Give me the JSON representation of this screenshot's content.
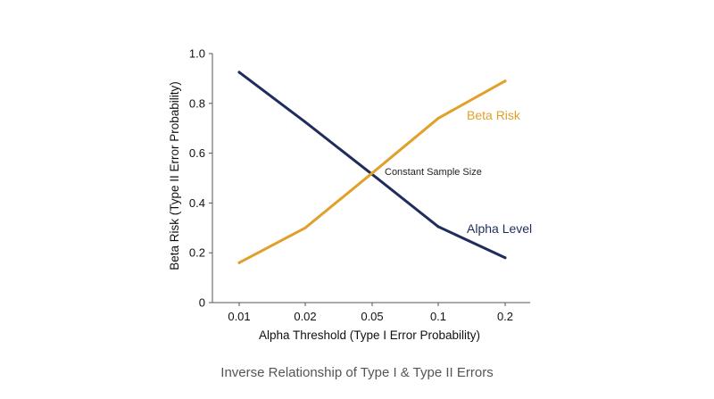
{
  "caption": "Inverse Relationship of Type I & Type II Errors",
  "chart_data": {
    "type": "line",
    "title": "",
    "xlabel": "Alpha Threshold (Type I Error Probability)",
    "ylabel": "Beta Risk (Type II Error Probability)",
    "categories": [
      "0.01",
      "0.02",
      "0.05",
      "0.1",
      "0.2"
    ],
    "y_ticks": [
      "0",
      "0.2",
      "0.4",
      "0.6",
      "0.8",
      "1.0"
    ],
    "ylim": [
      0,
      1.0
    ],
    "grid": false,
    "series": [
      {
        "name": "Alpha Level",
        "color": "#1f2d5c",
        "values": [
          0.925,
          0.725,
          0.515,
          0.305,
          0.18
        ]
      },
      {
        "name": "Beta Risk",
        "color": "#e0a02a",
        "values": [
          0.16,
          0.3,
          0.52,
          0.74,
          0.89
        ]
      }
    ],
    "annotations": [
      {
        "text": "Constant Sample Size",
        "x": "0.05",
        "y": 0.52
      }
    ]
  }
}
